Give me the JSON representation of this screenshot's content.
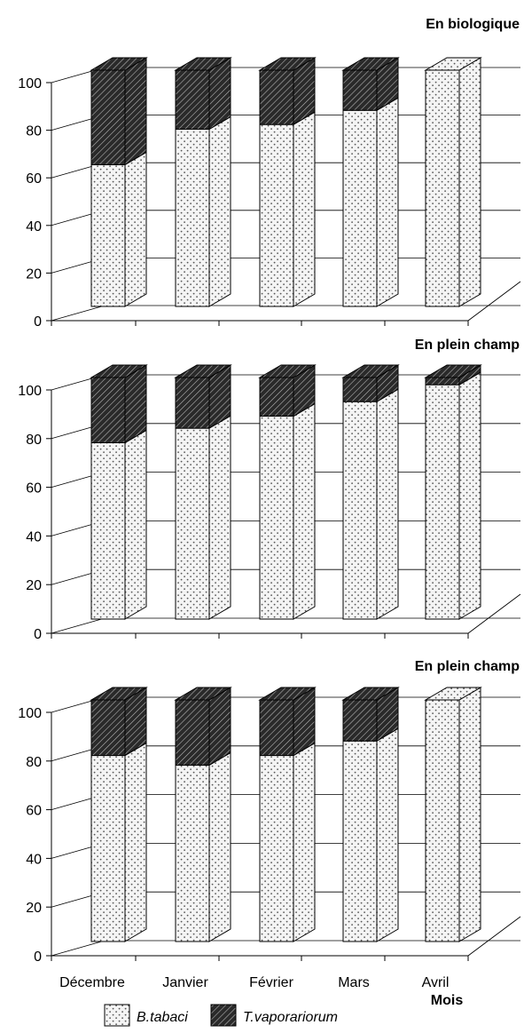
{
  "chart_data": [
    {
      "type": "bar",
      "stacked": true,
      "three_d": true,
      "title": "En biologique",
      "categories": [
        "Décembre",
        "Janvier",
        "Février",
        "Mars",
        "Avril"
      ],
      "series": [
        {
          "name": "B.tabaci",
          "values": [
            60,
            75,
            77,
            83,
            100
          ]
        },
        {
          "name": "T.vaporariorum",
          "values": [
            40,
            25,
            23,
            17,
            0
          ]
        }
      ],
      "yticks": [
        "0",
        "20",
        "40",
        "60",
        "80",
        "100"
      ],
      "ylim": [
        0,
        100
      ]
    },
    {
      "type": "bar",
      "stacked": true,
      "three_d": true,
      "title": "En plein champ",
      "categories": [
        "Décembre",
        "Janvier",
        "Février",
        "Mars",
        "Avril"
      ],
      "series": [
        {
          "name": "B.tabaci",
          "values": [
            73,
            79,
            84,
            90,
            97
          ]
        },
        {
          "name": "T.vaporariorum",
          "values": [
            27,
            21,
            16,
            10,
            3
          ]
        }
      ],
      "yticks": [
        "0",
        "20",
        "40",
        "60",
        "80",
        "100"
      ],
      "ylim": [
        0,
        100
      ]
    },
    {
      "type": "bar",
      "stacked": true,
      "three_d": true,
      "title": "En plein champ",
      "categories": [
        "Décembre",
        "Janvier",
        "Février",
        "Mars",
        "Avril"
      ],
      "series": [
        {
          "name": "B.tabaci",
          "values": [
            77,
            73,
            77,
            83,
            100
          ]
        },
        {
          "name": "T.vaporariorum",
          "values": [
            23,
            27,
            23,
            17,
            0
          ]
        }
      ],
      "yticks": [
        "0",
        "20",
        "40",
        "60",
        "80",
        "100"
      ],
      "ylim": [
        0,
        100
      ]
    }
  ],
  "xlabel": "Mois",
  "legend": [
    {
      "name": "B.tabaci",
      "pattern": "dots"
    },
    {
      "name": "T.vaporariorum",
      "pattern": "hatch"
    }
  ],
  "colors": {
    "bar_light": "#f4f4f4",
    "bar_dark": "#2a2a2a",
    "axis": "#000000"
  }
}
